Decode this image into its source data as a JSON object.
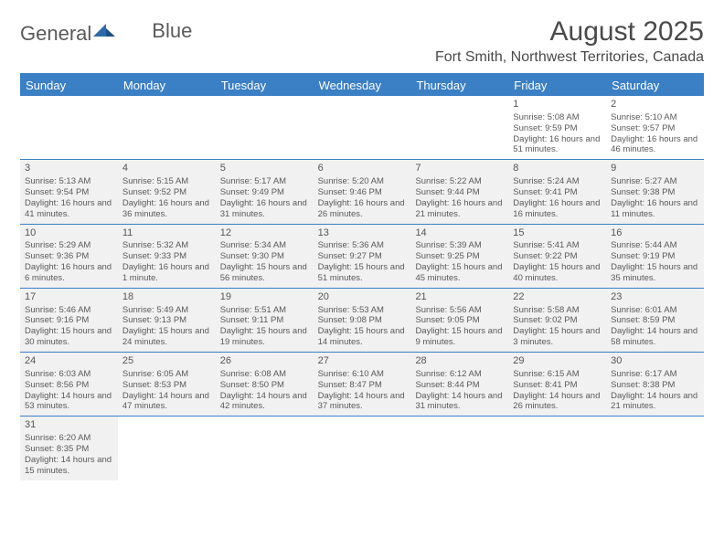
{
  "logo": {
    "general": "General",
    "blue": "Blue"
  },
  "title": "August 2025",
  "location": "Fort Smith, Northwest Territories, Canada",
  "colors": {
    "primary": "#3b7fc4",
    "shaded": "#f1f1f1",
    "text": "#5a5a5a",
    "bg": "#ffffff"
  },
  "day_headers": [
    "Sunday",
    "Monday",
    "Tuesday",
    "Wednesday",
    "Thursday",
    "Friday",
    "Saturday"
  ],
  "weeks": [
    [
      {
        "day": "",
        "shaded": false
      },
      {
        "day": "",
        "shaded": false
      },
      {
        "day": "",
        "shaded": false
      },
      {
        "day": "",
        "shaded": false
      },
      {
        "day": "",
        "shaded": false
      },
      {
        "day": "1",
        "shaded": false,
        "sunrise": "Sunrise: 5:08 AM",
        "sunset": "Sunset: 9:59 PM",
        "daylight": "Daylight: 16 hours and 51 minutes."
      },
      {
        "day": "2",
        "shaded": false,
        "sunrise": "Sunrise: 5:10 AM",
        "sunset": "Sunset: 9:57 PM",
        "daylight": "Daylight: 16 hours and 46 minutes."
      }
    ],
    [
      {
        "day": "3",
        "shaded": true,
        "sunrise": "Sunrise: 5:13 AM",
        "sunset": "Sunset: 9:54 PM",
        "daylight": "Daylight: 16 hours and 41 minutes."
      },
      {
        "day": "4",
        "shaded": true,
        "sunrise": "Sunrise: 5:15 AM",
        "sunset": "Sunset: 9:52 PM",
        "daylight": "Daylight: 16 hours and 36 minutes."
      },
      {
        "day": "5",
        "shaded": true,
        "sunrise": "Sunrise: 5:17 AM",
        "sunset": "Sunset: 9:49 PM",
        "daylight": "Daylight: 16 hours and 31 minutes."
      },
      {
        "day": "6",
        "shaded": true,
        "sunrise": "Sunrise: 5:20 AM",
        "sunset": "Sunset: 9:46 PM",
        "daylight": "Daylight: 16 hours and 26 minutes."
      },
      {
        "day": "7",
        "shaded": true,
        "sunrise": "Sunrise: 5:22 AM",
        "sunset": "Sunset: 9:44 PM",
        "daylight": "Daylight: 16 hours and 21 minutes."
      },
      {
        "day": "8",
        "shaded": true,
        "sunrise": "Sunrise: 5:24 AM",
        "sunset": "Sunset: 9:41 PM",
        "daylight": "Daylight: 16 hours and 16 minutes."
      },
      {
        "day": "9",
        "shaded": true,
        "sunrise": "Sunrise: 5:27 AM",
        "sunset": "Sunset: 9:38 PM",
        "daylight": "Daylight: 16 hours and 11 minutes."
      }
    ],
    [
      {
        "day": "10",
        "shaded": true,
        "sunrise": "Sunrise: 5:29 AM",
        "sunset": "Sunset: 9:36 PM",
        "daylight": "Daylight: 16 hours and 6 minutes."
      },
      {
        "day": "11",
        "shaded": true,
        "sunrise": "Sunrise: 5:32 AM",
        "sunset": "Sunset: 9:33 PM",
        "daylight": "Daylight: 16 hours and 1 minute."
      },
      {
        "day": "12",
        "shaded": true,
        "sunrise": "Sunrise: 5:34 AM",
        "sunset": "Sunset: 9:30 PM",
        "daylight": "Daylight: 15 hours and 56 minutes."
      },
      {
        "day": "13",
        "shaded": true,
        "sunrise": "Sunrise: 5:36 AM",
        "sunset": "Sunset: 9:27 PM",
        "daylight": "Daylight: 15 hours and 51 minutes."
      },
      {
        "day": "14",
        "shaded": true,
        "sunrise": "Sunrise: 5:39 AM",
        "sunset": "Sunset: 9:25 PM",
        "daylight": "Daylight: 15 hours and 45 minutes."
      },
      {
        "day": "15",
        "shaded": true,
        "sunrise": "Sunrise: 5:41 AM",
        "sunset": "Sunset: 9:22 PM",
        "daylight": "Daylight: 15 hours and 40 minutes."
      },
      {
        "day": "16",
        "shaded": true,
        "sunrise": "Sunrise: 5:44 AM",
        "sunset": "Sunset: 9:19 PM",
        "daylight": "Daylight: 15 hours and 35 minutes."
      }
    ],
    [
      {
        "day": "17",
        "shaded": true,
        "sunrise": "Sunrise: 5:46 AM",
        "sunset": "Sunset: 9:16 PM",
        "daylight": "Daylight: 15 hours and 30 minutes."
      },
      {
        "day": "18",
        "shaded": true,
        "sunrise": "Sunrise: 5:49 AM",
        "sunset": "Sunset: 9:13 PM",
        "daylight": "Daylight: 15 hours and 24 minutes."
      },
      {
        "day": "19",
        "shaded": true,
        "sunrise": "Sunrise: 5:51 AM",
        "sunset": "Sunset: 9:11 PM",
        "daylight": "Daylight: 15 hours and 19 minutes."
      },
      {
        "day": "20",
        "shaded": true,
        "sunrise": "Sunrise: 5:53 AM",
        "sunset": "Sunset: 9:08 PM",
        "daylight": "Daylight: 15 hours and 14 minutes."
      },
      {
        "day": "21",
        "shaded": true,
        "sunrise": "Sunrise: 5:56 AM",
        "sunset": "Sunset: 9:05 PM",
        "daylight": "Daylight: 15 hours and 9 minutes."
      },
      {
        "day": "22",
        "shaded": true,
        "sunrise": "Sunrise: 5:58 AM",
        "sunset": "Sunset: 9:02 PM",
        "daylight": "Daylight: 15 hours and 3 minutes."
      },
      {
        "day": "23",
        "shaded": true,
        "sunrise": "Sunrise: 6:01 AM",
        "sunset": "Sunset: 8:59 PM",
        "daylight": "Daylight: 14 hours and 58 minutes."
      }
    ],
    [
      {
        "day": "24",
        "shaded": true,
        "sunrise": "Sunrise: 6:03 AM",
        "sunset": "Sunset: 8:56 PM",
        "daylight": "Daylight: 14 hours and 53 minutes."
      },
      {
        "day": "25",
        "shaded": true,
        "sunrise": "Sunrise: 6:05 AM",
        "sunset": "Sunset: 8:53 PM",
        "daylight": "Daylight: 14 hours and 47 minutes."
      },
      {
        "day": "26",
        "shaded": true,
        "sunrise": "Sunrise: 6:08 AM",
        "sunset": "Sunset: 8:50 PM",
        "daylight": "Daylight: 14 hours and 42 minutes."
      },
      {
        "day": "27",
        "shaded": true,
        "sunrise": "Sunrise: 6:10 AM",
        "sunset": "Sunset: 8:47 PM",
        "daylight": "Daylight: 14 hours and 37 minutes."
      },
      {
        "day": "28",
        "shaded": true,
        "sunrise": "Sunrise: 6:12 AM",
        "sunset": "Sunset: 8:44 PM",
        "daylight": "Daylight: 14 hours and 31 minutes."
      },
      {
        "day": "29",
        "shaded": true,
        "sunrise": "Sunrise: 6:15 AM",
        "sunset": "Sunset: 8:41 PM",
        "daylight": "Daylight: 14 hours and 26 minutes."
      },
      {
        "day": "30",
        "shaded": true,
        "sunrise": "Sunrise: 6:17 AM",
        "sunset": "Sunset: 8:38 PM",
        "daylight": "Daylight: 14 hours and 21 minutes."
      }
    ],
    [
      {
        "day": "31",
        "shaded": true,
        "sunrise": "Sunrise: 6:20 AM",
        "sunset": "Sunset: 8:35 PM",
        "daylight": "Daylight: 14 hours and 15 minutes."
      },
      {
        "day": "",
        "shaded": false
      },
      {
        "day": "",
        "shaded": false
      },
      {
        "day": "",
        "shaded": false
      },
      {
        "day": "",
        "shaded": false
      },
      {
        "day": "",
        "shaded": false
      },
      {
        "day": "",
        "shaded": false
      }
    ]
  ]
}
